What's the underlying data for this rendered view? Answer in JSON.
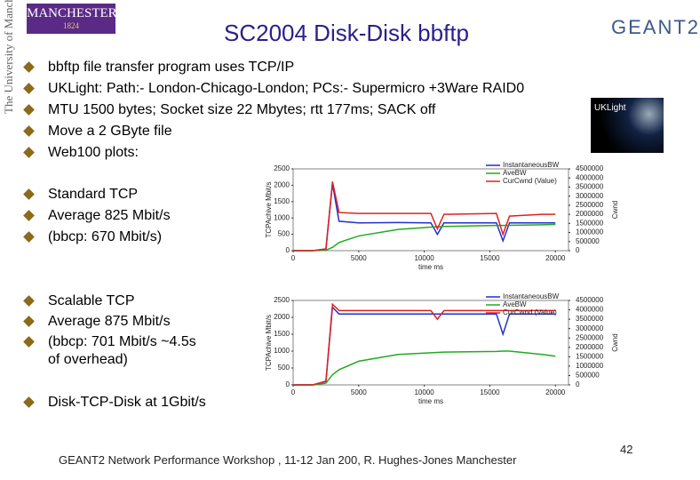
{
  "header": {
    "title": "SC2004 Disk-Disk bbftp",
    "university_name": "MANCHESTER",
    "university_year": "1824",
    "university_vertical": "The University of Manchester",
    "partner_logo": "GEANT2",
    "image_label": "UKLight"
  },
  "bullets": [
    "bbftp file transfer program uses TCP/IP",
    "UKLight: Path:- London-Chicago-London; PCs:- Supermicro +3Ware RAID0",
    "MTU 1500 bytes; Socket size 22 Mbytes; rtt 177ms; SACK off",
    "Move a 2 GByte file",
    "Web100 plots:"
  ],
  "sections": [
    {
      "bullets": [
        "Standard TCP",
        "Average 825 Mbit/s",
        "(bbcp: 670 Mbit/s)"
      ],
      "plot": {
        "type": "line",
        "xlabel": "time ms",
        "ylabel": "TCPAchive Mbit/s",
        "y2label": "Cwnd",
        "x": [
          0,
          1500,
          2500,
          3000,
          3500,
          5000,
          8000,
          10500,
          11000,
          11500,
          15500,
          16000,
          16500,
          19000,
          20000
        ],
        "series": [
          {
            "name": "InstantaneousBW",
            "color": "#1f2fd0",
            "values": [
              0,
              0,
              50,
              2050,
              900,
              850,
              860,
              850,
              500,
              850,
              850,
              300,
              850,
              850,
              850
            ]
          },
          {
            "name": "AveBW",
            "color": "#22aa22",
            "values": [
              0,
              0,
              20,
              100,
              250,
              450,
              650,
              720,
              730,
              740,
              770,
              770,
              775,
              790,
              800
            ]
          },
          {
            "name": "CurCwnd (Value)",
            "color": "#e02020",
            "axis": "y2",
            "values": [
              0,
              0,
              100000,
              3800000,
              2100000,
              2050000,
              2050000,
              2050000,
              1200000,
              2000000,
              2050000,
              900000,
              1900000,
              2000000,
              2000000
            ]
          }
        ],
        "xlim": [
          0,
          21000
        ],
        "ylim": [
          0,
          2500
        ],
        "y2lim": [
          0,
          4500000
        ],
        "xticks": [
          0,
          5000,
          10000,
          15000,
          20000
        ],
        "yticks": [
          0,
          500,
          1000,
          1500,
          2000,
          2500
        ],
        "y2ticks": [
          0,
          500000,
          1000000,
          1500000,
          2000000,
          2500000,
          3000000,
          3500000,
          4000000,
          4500000
        ]
      }
    },
    {
      "bullets": [
        "Scalable TCP",
        "Average 875 Mbit/s",
        "(bbcp: 701 Mbit/s ~4.5s of overhead)"
      ],
      "plot": {
        "type": "line",
        "xlabel": "time ms",
        "ylabel": "TCPAchive Mbit/s",
        "y2label": "Cwnd",
        "x": [
          0,
          1500,
          2500,
          3000,
          3500,
          5000,
          8000,
          10500,
          11000,
          11500,
          15500,
          16000,
          16500,
          19000,
          20000
        ],
        "series": [
          {
            "name": "InstantaneousBW",
            "color": "#1f2fd0",
            "values": [
              0,
              0,
              100,
              2300,
              2100,
              2100,
              2100,
              2100,
              2100,
              2100,
              2100,
              1500,
              2100,
              2100,
              2100
            ]
          },
          {
            "name": "AveBW",
            "color": "#22aa22",
            "values": [
              0,
              0,
              50,
              300,
              450,
              700,
              900,
              950,
              960,
              970,
              990,
              1000,
              1000,
              900,
              850
            ]
          },
          {
            "name": "CurCwnd (Value)",
            "color": "#e02020",
            "axis": "y2",
            "values": [
              0,
              0,
              200000,
              4300000,
              3960000,
              3960000,
              3960000,
              3960000,
              3500000,
              3960000,
              3960000,
              3960000,
              3960000,
              3960000,
              3960000
            ]
          }
        ],
        "xlim": [
          0,
          21000
        ],
        "ylim": [
          0,
          2500
        ],
        "y2lim": [
          0,
          4500000
        ],
        "xticks": [
          0,
          5000,
          10000,
          15000,
          20000
        ],
        "yticks": [
          0,
          500,
          1000,
          1500,
          2000,
          2500
        ],
        "y2ticks": [
          0,
          500000,
          1000000,
          1500000,
          2000000,
          2500000,
          3000000,
          3500000,
          4000000,
          4500000
        ]
      }
    }
  ],
  "final_bullet": "Disk-TCP-Disk at 1Gbit/s",
  "footer": {
    "text": "GEANT2 Network Performance Workshop , 11-12 Jan 200,  R. Hughes-Jones  Manchester",
    "page": 42
  }
}
